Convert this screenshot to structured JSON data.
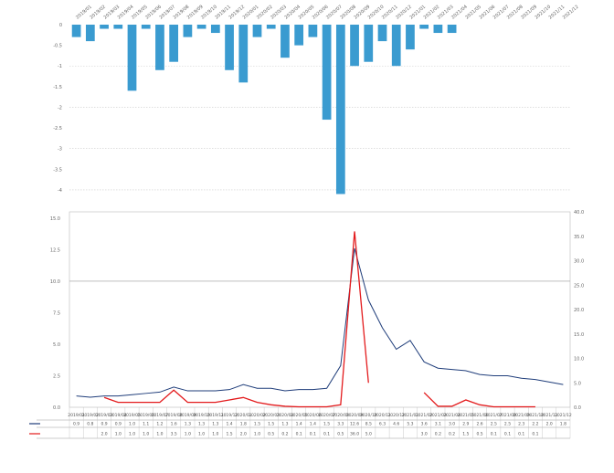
{
  "chart_data": [
    {
      "type": "bar",
      "title": "",
      "ylabel": "",
      "categories": [
        "2019/01",
        "2019/02",
        "2019/03",
        "2019/04",
        "2019/05",
        "2019/06",
        "2019/07",
        "2019/08",
        "2019/09",
        "2019/10",
        "2019/11",
        "2019/12",
        "2020/01",
        "2020/02",
        "2020/03",
        "2020/04",
        "2020/05",
        "2020/06",
        "2020/07",
        "2020/08",
        "2020/09",
        "2020/10",
        "2020/11",
        "2020/12",
        "2021/01",
        "2021/02",
        "2021/03",
        "2021/04",
        "2021/05",
        "2021/06",
        "2021/07",
        "2021/08",
        "2021/09",
        "2021/10",
        "2021/11",
        "2021/12"
      ],
      "values": [
        -0.3,
        -0.4,
        -0.1,
        -0.1,
        -1.6,
        -0.1,
        -1.1,
        -0.9,
        -0.3,
        -0.1,
        -0.2,
        -1.1,
        -1.4,
        -0.3,
        -0.1,
        -0.8,
        -0.5,
        -0.3,
        -2.3,
        -4.1,
        -1.0,
        -0.9,
        -0.4,
        -1.0,
        -0.6,
        -0.1,
        -0.2,
        -0.2,
        0,
        0,
        0,
        0,
        0,
        0,
        0,
        0
      ],
      "ylim": [
        -4.2,
        0
      ],
      "ticks": [
        0,
        -0.5,
        -1,
        -1.5,
        -2,
        -2.5,
        -3,
        -3.5,
        -4
      ],
      "tick_labels": [
        "0",
        "-0.5",
        "-1",
        "-1.5",
        "-2",
        "-2.5",
        "-3",
        "-3.5",
        "-4"
      ],
      "color": "#3a9bd0"
    },
    {
      "type": "line",
      "title": "",
      "ylabel_left": "",
      "ylabel_right": "",
      "x": [
        "2019/01",
        "2019/02",
        "2019/03",
        "2019/04",
        "2019/05",
        "2019/06",
        "2019/07",
        "2019/08",
        "2019/09",
        "2019/10",
        "2019/11",
        "2019/12",
        "2020/01",
        "2020/02",
        "2020/03",
        "2020/04",
        "2020/05",
        "2020/06",
        "2020/07",
        "2020/08",
        "2020/09",
        "2020/10",
        "2020/11",
        "2020/12",
        "2021/01",
        "2021/02",
        "2021/03",
        "2021/04",
        "2021/05",
        "2021/06",
        "2021/07",
        "2021/08",
        "2021/09",
        "2021/10",
        "2021/11",
        "2021/12"
      ],
      "ylim_left": [
        0,
        15.5
      ],
      "ylim_right": [
        0,
        40
      ],
      "ticks_left": [
        "0.0",
        "2.5",
        "5.0",
        "7.5",
        "10.0",
        "12.5",
        "15.0"
      ],
      "ticks_right": [
        "0.0",
        "5.0",
        "10.0",
        "15.0",
        "20.0",
        "25.0",
        "30.0",
        "35.0",
        "40.0"
      ],
      "series": [
        {
          "name": "",
          "axis": "left",
          "color": "#1f3d7a",
          "values": [
            0.9,
            0.8,
            0.9,
            0.9,
            1.0,
            1.1,
            1.2,
            1.6,
            1.3,
            1.3,
            1.3,
            1.4,
            1.8,
            1.5,
            1.5,
            1.3,
            1.4,
            1.4,
            1.5,
            3.3,
            12.6,
            8.5,
            6.3,
            4.6,
            5.3,
            3.6,
            3.1,
            3.0,
            2.9,
            2.6,
            2.5,
            2.5,
            2.3,
            2.2,
            2.0,
            1.8
          ]
        },
        {
          "name": "",
          "axis": "right",
          "color": "#e31a1c",
          "values": [
            null,
            null,
            2.0,
            1.0,
            1.0,
            1.0,
            1.0,
            3.5,
            1.0,
            1.0,
            1.0,
            1.5,
            2.0,
            1.0,
            0.5,
            0.2,
            0.1,
            0.1,
            0.1,
            0.5,
            36.0,
            5.0,
            null,
            null,
            null,
            3.0,
            0.2,
            0.2,
            1.5,
            0.5,
            0.1,
            0.1,
            0.1,
            0.1,
            null,
            null
          ]
        }
      ]
    }
  ],
  "data_table": {
    "rows": [
      {
        "name": "",
        "color": "#1f3d7a"
      },
      {
        "name": "",
        "color": "#e31a1c"
      }
    ]
  }
}
